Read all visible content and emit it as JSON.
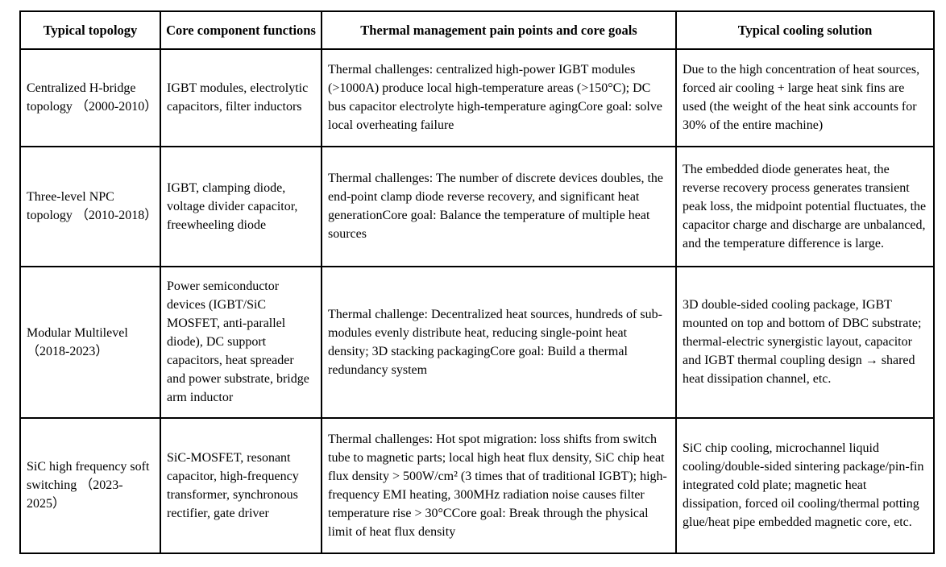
{
  "page": {
    "background_color": "#ffffff",
    "border_color": "#000000",
    "text_color": "#000000"
  },
  "table": {
    "headers": [
      "Typical topology",
      "Core component functions",
      "Thermal management pain points and core goals",
      "Typical cooling solution"
    ],
    "rows": [
      {
        "topology": "Centralized H-bridge topology （2000-2010）",
        "components": "IGBT modules, electrolytic capacitors, filter inductors",
        "pain_points": "Thermal challenges: centralized high-power IGBT modules (>1000A) produce local high-temperature areas (>150°C); DC bus capacitor electrolyte high-temperature agingCore goal: solve local overheating failure",
        "cooling": "Due to the high concentration of heat sources, forced air cooling + large heat sink fins are used (the weight of the heat sink accounts for 30% of the entire machine)"
      },
      {
        "topology": "Three-level NPC topology （2010-2018）",
        "components": "IGBT, clamping diode, voltage divider capacitor, freewheeling diode",
        "pain_points": "Thermal challenges: The number of discrete devices doubles, the end-point clamp diode reverse recovery, and significant heat generationCore goal: Balance the temperature of multiple heat sources",
        "cooling": "The embedded diode generates heat, the reverse recovery process generates transient peak loss, the midpoint potential fluctuates, the capacitor charge and discharge are unbalanced, and the temperature difference is large."
      },
      {
        "topology": "Modular Multilevel （2018-2023）",
        "components": "Power semiconductor devices (IGBT/SiC MOSFET, anti-parallel diode), DC support capacitors, heat spreader and power substrate, bridge arm inductor",
        "pain_points": "Thermal challenge: Decentralized heat sources, hundreds of sub-modules evenly distribute heat, reducing single-point heat density; 3D stacking packagingCore goal: Build a thermal redundancy system",
        "cooling": "3D double-sided cooling package, IGBT mounted on top and bottom of DBC substrate; thermal-electric synergistic layout, capacitor and IGBT thermal coupling design → shared heat dissipation channel, etc."
      },
      {
        "topology": "SiC high frequency soft switching （2023-2025）",
        "components": "SiC-MOSFET, resonant capacitor, high-frequency transformer, synchronous rectifier, gate driver",
        "pain_points": "Thermal challenges: Hot spot migration: loss shifts from switch tube to magnetic parts; local high heat flux density, SiC chip heat flux density > 500W/cm² (3 times that of traditional IGBT); high-frequency EMI heating, 300MHz radiation noise causes filter temperature rise > 30°CCore goal: Break through the physical limit of heat flux density",
        "cooling": "SiC chip cooling, microchannel liquid cooling/double-sided sintering package/pin-fin integrated cold plate; magnetic heat dissipation, forced oil cooling/thermal potting glue/heat pipe embedded magnetic core, etc."
      }
    ]
  }
}
